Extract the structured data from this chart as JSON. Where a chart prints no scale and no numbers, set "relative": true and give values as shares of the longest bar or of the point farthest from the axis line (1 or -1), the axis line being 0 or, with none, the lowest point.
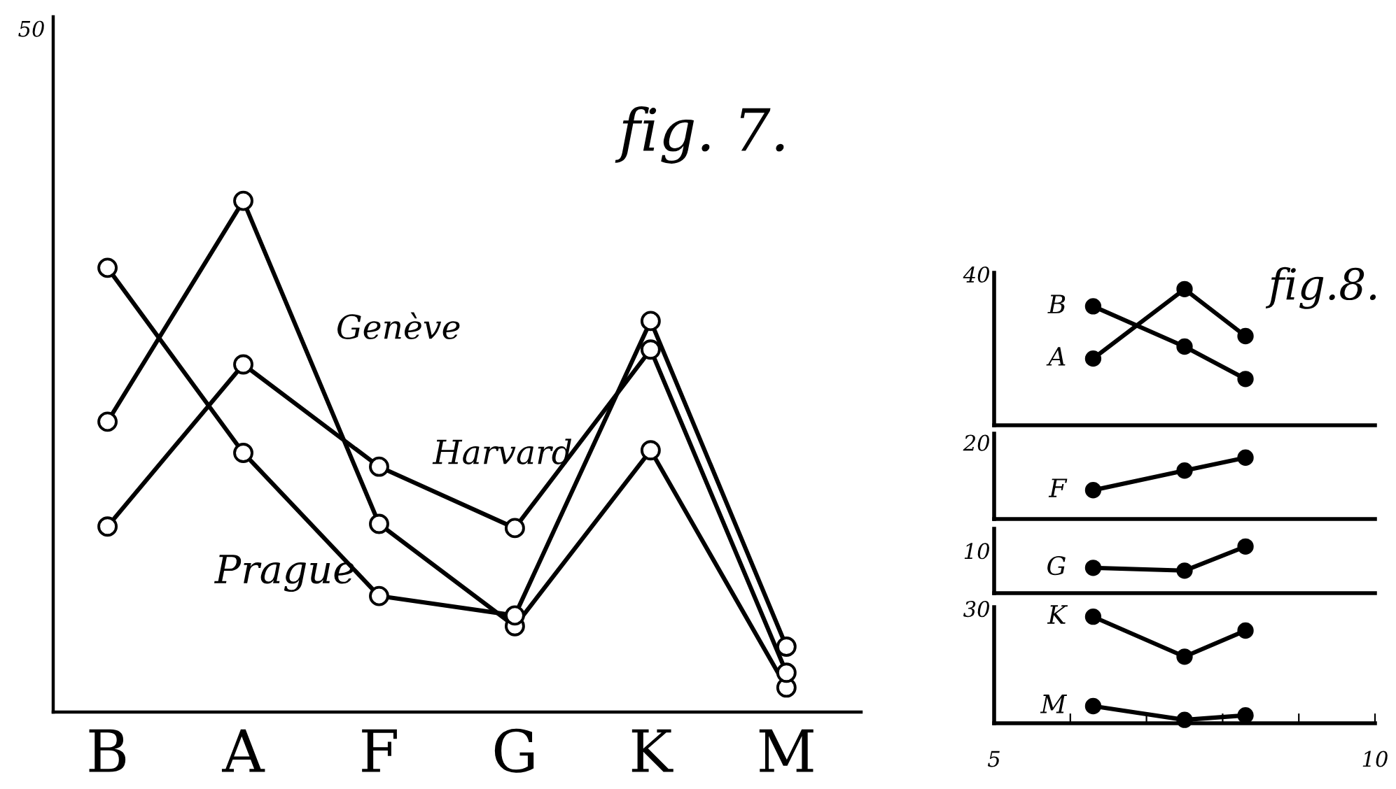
{
  "chart_data": [
    {
      "type": "line",
      "title": "fig. 7.",
      "categories": [
        "B",
        "A",
        "F",
        "G",
        "K",
        "M"
      ],
      "relative": true,
      "annotations": [
        "50"
      ],
      "marker": "circle",
      "line_style": "solid",
      "series": [
        {
          "name": "Genève",
          "color": "#000000",
          "values": [
            0.568,
            1,
            0.368,
            0.168,
            0.512,
            0.048
          ]
        },
        {
          "name": "Harvard",
          "color": "#000000",
          "values": [
            0.363,
            0.68,
            0.48,
            0.36,
            0.709,
            0.077
          ]
        },
        {
          "name": "Prague",
          "color": "#000000",
          "values": [
            0.869,
            0.507,
            0.227,
            0.189,
            0.765,
            0.128
          ]
        }
      ]
    },
    {
      "type": "line",
      "title": "fig.8.",
      "xlim": [
        5,
        10
      ],
      "relative": true,
      "annotations": [
        "40"
      ],
      "tick_labels": false,
      "marker": "circle",
      "line_style": "solid",
      "series": [
        {
          "name": "B",
          "color": "#000000",
          "x": [
            6.3,
            7.5,
            8.3
          ],
          "values": [
            0.874,
            0.578,
            0.34
          ]
        },
        {
          "name": "A",
          "color": "#000000",
          "x": [
            6.3,
            7.5,
            8.3
          ],
          "values": [
            0.49,
            1,
            0.655
          ]
        }
      ]
    },
    {
      "type": "line",
      "xlim": [
        5,
        10
      ],
      "relative": true,
      "annotations": [
        "20"
      ],
      "tick_labels": false,
      "marker": "circle",
      "line_style": "solid",
      "series": [
        {
          "name": "F",
          "color": "#000000",
          "x": [
            6.3,
            7.5,
            8.3
          ],
          "values": [
            0.47,
            0.789,
            1
          ]
        }
      ]
    },
    {
      "type": "line",
      "xlim": [
        5,
        10
      ],
      "relative": true,
      "annotations": [
        "10"
      ],
      "tick_labels": false,
      "marker": "circle",
      "line_style": "solid",
      "series": [
        {
          "name": "G",
          "color": "#000000",
          "x": [
            6.3,
            7.5,
            8.3
          ],
          "values": [
            0.543,
            0.483,
            1
          ]
        }
      ]
    },
    {
      "type": "line",
      "xlim": [
        5,
        10
      ],
      "relative": true,
      "annotations": [
        "30"
      ],
      "tick_labels": "x",
      "xticks": [
        5,
        {
          "value": 6,
          "label": null
        },
        {
          "value": 7,
          "label": null
        },
        {
          "value": 8,
          "label": null
        },
        {
          "value": 9,
          "label": null
        },
        10
      ],
      "marker": "circle",
      "line_style": "solid",
      "series": [
        {
          "name": "K",
          "color": "#000000",
          "x": [
            6.3,
            7.5,
            8.3
          ],
          "values": [
            1,
            0.625,
            0.87
          ]
        },
        {
          "name": "M",
          "color": "#000000",
          "x": [
            6.3,
            7.5,
            8.3
          ],
          "values": [
            0.161,
            0.032,
            0.074
          ]
        }
      ]
    }
  ]
}
